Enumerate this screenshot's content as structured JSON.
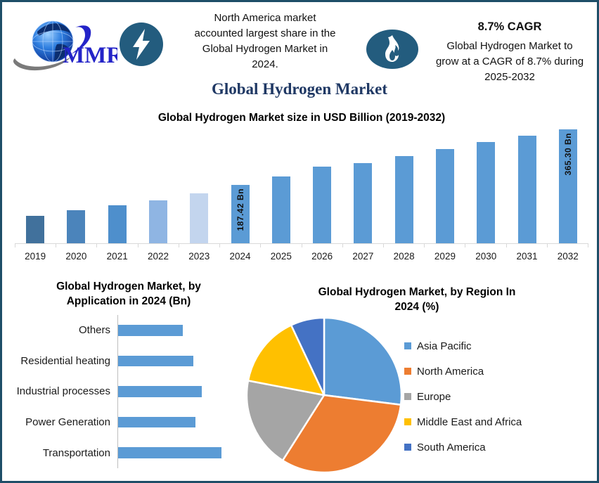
{
  "header": {
    "logo_text": "MMR",
    "left_callout": {
      "icon": "lightning-bolt",
      "lines": [
        "North America market",
        "accounted largest share in the",
        "Global Hydrogen Market in",
        "2024."
      ]
    },
    "right_callout": {
      "icon": "flame",
      "heading": "8.7% CAGR",
      "lines": [
        "Global Hydrogen Market to",
        "grow at a CAGR of 8.7% during",
        "2025-2032"
      ]
    }
  },
  "page_title": "Global Hydrogen Market",
  "colors": {
    "page_border": "#1E4E68",
    "icon_circle": "#235C7E",
    "page_title": "#1F3864",
    "bar_primary": "#5B9BD5",
    "axis_line": "#D9D9D9"
  },
  "chart_data": [
    {
      "type": "bar",
      "title": "Global Hydrogen Market size in USD Billion (2019-2032)",
      "x": [
        "2019",
        "2020",
        "2021",
        "2022",
        "2023",
        "2024",
        "2025",
        "2026",
        "2027",
        "2028",
        "2029",
        "2030",
        "2031",
        "2032"
      ],
      "values": [
        88,
        105,
        121,
        137,
        160,
        187.42,
        214,
        245,
        257,
        279,
        302,
        324,
        344,
        365.3
      ],
      "point_labels": [
        "",
        "",
        "",
        "",
        "",
        "187.42 Bn",
        "",
        "",
        "",
        "",
        "",
        "",
        "",
        "365.30 Bn"
      ],
      "bar_colors": [
        "#41719C",
        "#4B84BB",
        "#4E8FCC",
        "#8FB5E3",
        "#C3D5EE",
        "#5B9BD5",
        "#5B9BD5",
        "#5B9BD5",
        "#5B9BD5",
        "#5B9BD5",
        "#5B9BD5",
        "#5B9BD5",
        "#5B9BD5",
        "#5B9BD5"
      ],
      "ylim": [
        0,
        365.3
      ],
      "ylabel": "USD Billion",
      "grid": false,
      "legend": false
    },
    {
      "type": "bar",
      "orientation": "horizontal",
      "title": "Global Hydrogen Market, by Application in 2024 (Bn)",
      "title_lines": [
        "Global Hydrogen Market, by",
        "Application in 2024 (Bn)"
      ],
      "categories": [
        "Others",
        "Residential heating",
        "Industrial processes",
        "Power Generation",
        "Transportation"
      ],
      "values": [
        30,
        35,
        39,
        36,
        48
      ],
      "bar_color": "#5B9BD5",
      "xlim": [
        0,
        50
      ],
      "grid": false,
      "legend": false
    },
    {
      "type": "pie",
      "title": "Global Hydrogen Market, by Region In 2024 (%)",
      "title_lines": [
        "Global Hydrogen Market, by Region In",
        "2024 (%)"
      ],
      "labels": [
        "Asia Pacific",
        "North America",
        "Europe",
        "Middle East and Africa",
        "South America"
      ],
      "values": [
        27,
        32,
        19,
        15,
        7
      ],
      "colors": [
        "#5B9BD5",
        "#ED7D31",
        "#A5A5A5",
        "#FFC000",
        "#4472C4"
      ],
      "legend_position": "right",
      "start_angle_deg": 0,
      "direction": "clockwise"
    }
  ]
}
